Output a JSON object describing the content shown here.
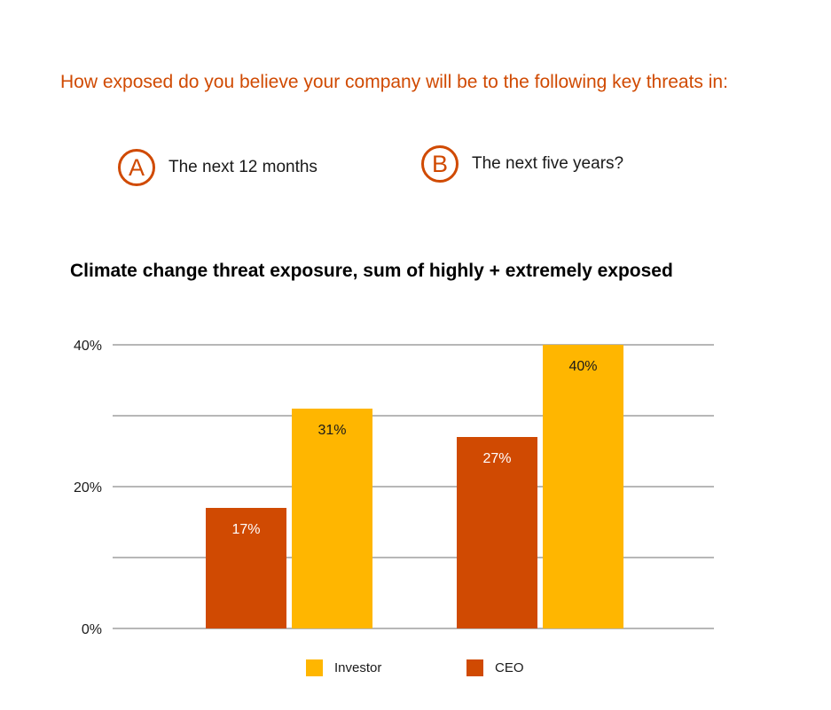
{
  "question": "How exposed do you believe your company will be to the following key threats in:",
  "options": [
    {
      "letter": "A",
      "text": "The next 12 months"
    },
    {
      "letter": "B",
      "text": "The next five years?"
    }
  ],
  "colors": {
    "ceo": "#d04a02",
    "investor": "#ffb600",
    "accent": "#d04a02",
    "grid": "#8c8c8c"
  },
  "chart_data": {
    "type": "bar",
    "title": "Climate change threat exposure, sum of highly + extremely exposed",
    "categories": [
      "",
      ""
    ],
    "series": [
      {
        "name": "CEO",
        "values": [
          17,
          27
        ],
        "labels": [
          "17%",
          "27%"
        ]
      },
      {
        "name": "Investor",
        "values": [
          31,
          40
        ],
        "labels": [
          "31%",
          "40%"
        ]
      }
    ],
    "ylim": [
      0,
      40
    ],
    "yticks": [
      0,
      10,
      20,
      30,
      40
    ],
    "ytick_labels": [
      "0%",
      "",
      "20%",
      "",
      "40%"
    ],
    "grid": true,
    "legend": {
      "placement": "bottom",
      "order": [
        "Investor",
        "CEO"
      ]
    }
  }
}
